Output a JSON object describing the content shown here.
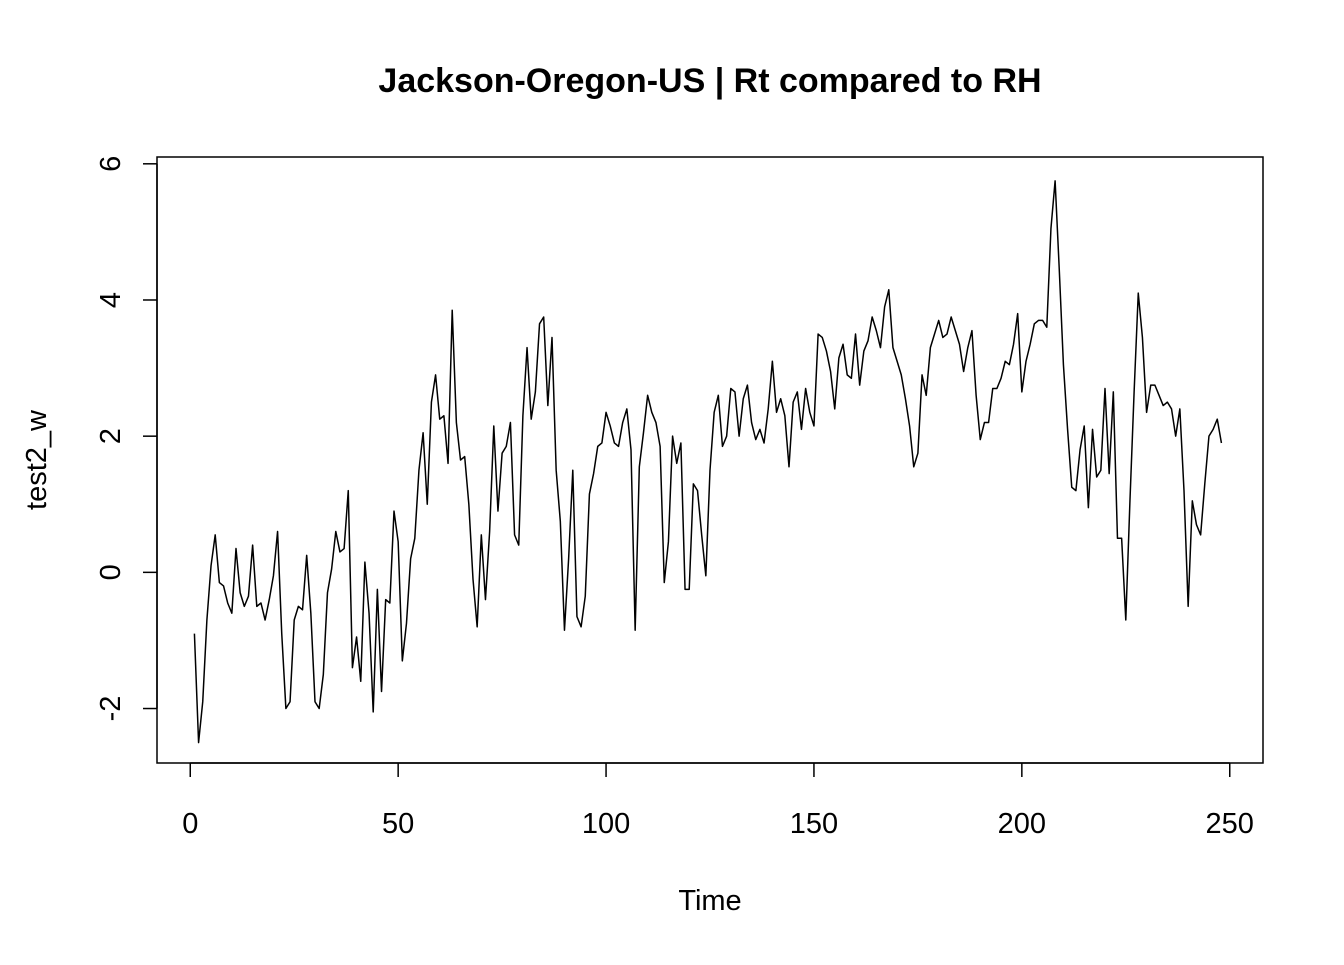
{
  "chart_data": {
    "type": "line",
    "title": "Jackson-Oregon-US | Rt compared to RH",
    "xlabel": "Time",
    "ylabel": "test2_w",
    "xlim": [
      -8,
      258
    ],
    "ylim": [
      -2.8,
      6.1
    ],
    "x_ticks": [
      {
        "value": 0,
        "label": "0"
      },
      {
        "value": 50,
        "label": "50"
      },
      {
        "value": 100,
        "label": "100"
      },
      {
        "value": 150,
        "label": "150"
      },
      {
        "value": 200,
        "label": "200"
      },
      {
        "value": 250,
        "label": "250"
      }
    ],
    "y_ticks": [
      {
        "value": -2,
        "label": "-2"
      },
      {
        "value": 0,
        "label": "0"
      },
      {
        "value": 2,
        "label": "2"
      },
      {
        "value": 4,
        "label": "4"
      },
      {
        "value": 6,
        "label": "6"
      }
    ],
    "grid": false,
    "legend": "none",
    "colors": {
      "line": "#000000",
      "axis": "#000000",
      "background": "#ffffff"
    },
    "series": [
      {
        "x_start": 1,
        "x_step": 1,
        "values": [
          -0.9,
          -2.5,
          -1.9,
          -0.7,
          0.1,
          0.55,
          -0.15,
          -0.2,
          -0.45,
          -0.6,
          0.35,
          -0.3,
          -0.5,
          -0.35,
          0.4,
          -0.5,
          -0.45,
          -0.7,
          -0.4,
          -0.05,
          0.6,
          -0.9,
          -2.0,
          -1.9,
          -0.7,
          -0.5,
          -0.55,
          0.25,
          -0.6,
          -1.9,
          -2.0,
          -1.5,
          -0.3,
          0.05,
          0.6,
          0.3,
          0.35,
          1.2,
          -1.4,
          -0.95,
          -1.6,
          0.15,
          -0.6,
          -2.05,
          -0.25,
          -1.75,
          -0.4,
          -0.45,
          0.9,
          0.45,
          -1.3,
          -0.75,
          0.2,
          0.5,
          1.5,
          2.05,
          1.0,
          2.5,
          2.9,
          2.25,
          2.3,
          1.6,
          3.85,
          2.2,
          1.65,
          1.7,
          1.0,
          -0.1,
          -0.8,
          0.55,
          -0.4,
          0.6,
          2.15,
          0.9,
          1.75,
          1.85,
          2.2,
          0.55,
          0.4,
          2.3,
          3.3,
          2.25,
          2.65,
          3.65,
          3.75,
          2.45,
          3.45,
          1.5,
          0.75,
          -0.85,
          0.2,
          1.5,
          -0.65,
          -0.8,
          -0.35,
          1.15,
          1.45,
          1.85,
          1.9,
          2.35,
          2.15,
          1.9,
          1.85,
          2.2,
          2.4,
          1.8,
          -0.85,
          1.55,
          2.05,
          2.6,
          2.35,
          2.2,
          1.85,
          -0.15,
          0.45,
          2.0,
          1.6,
          1.9,
          -0.25,
          -0.25,
          1.3,
          1.2,
          0.55,
          -0.05,
          1.5,
          2.35,
          2.6,
          1.85,
          2.0,
          2.7,
          2.65,
          2.0,
          2.55,
          2.75,
          2.2,
          1.95,
          2.1,
          1.9,
          2.4,
          3.1,
          2.35,
          2.55,
          2.3,
          1.55,
          2.5,
          2.65,
          2.1,
          2.7,
          2.35,
          2.15,
          3.5,
          3.45,
          3.25,
          2.95,
          2.4,
          3.15,
          3.35,
          2.9,
          2.85,
          3.5,
          2.75,
          3.25,
          3.4,
          3.75,
          3.55,
          3.3,
          3.9,
          4.15,
          3.3,
          3.1,
          2.9,
          2.55,
          2.15,
          1.55,
          1.75,
          2.9,
          2.6,
          3.3,
          3.5,
          3.7,
          3.45,
          3.5,
          3.75,
          3.55,
          3.35,
          2.95,
          3.3,
          3.55,
          2.6,
          1.95,
          2.2,
          2.2,
          2.7,
          2.7,
          2.85,
          3.1,
          3.05,
          3.35,
          3.8,
          2.65,
          3.1,
          3.35,
          3.65,
          3.7,
          3.7,
          3.6,
          5.05,
          5.75,
          4.45,
          3.05,
          2.1,
          1.25,
          1.2,
          1.8,
          2.15,
          0.95,
          2.1,
          1.4,
          1.5,
          2.7,
          1.45,
          2.65,
          0.5,
          0.5,
          -0.7,
          1.05,
          2.65,
          4.1,
          3.45,
          2.35,
          2.75,
          2.75,
          2.6,
          2.45,
          2.5,
          2.4,
          2.0,
          2.4,
          1.2,
          -0.5,
          1.05,
          0.7,
          0.55,
          1.3,
          2.0,
          2.1,
          2.25,
          1.9
        ]
      }
    ]
  }
}
